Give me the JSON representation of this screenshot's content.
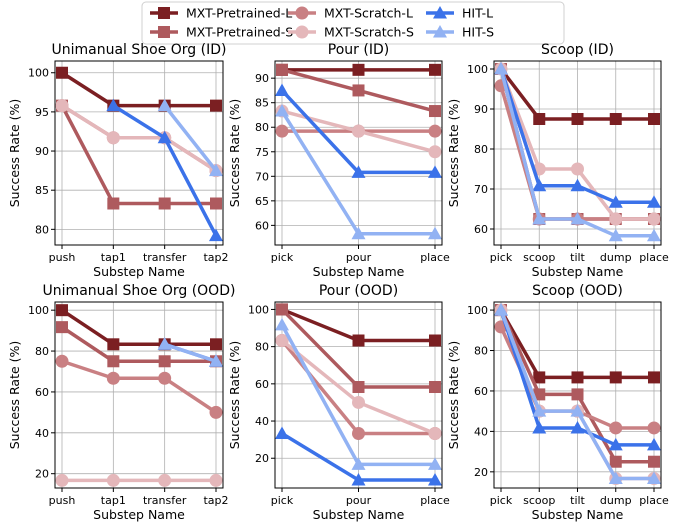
{
  "colors": {
    "MXT-Pretrained-L": "#7b1f22",
    "MXT-Pretrained-S": "#ae5a5e",
    "MXT-Scratch-L": "#c98083",
    "MXT-Scratch-S": "#e4b7ba",
    "HIT-L": "#3b72e9",
    "HIT-S": "#92b2f3"
  },
  "legend": {
    "entries": [
      {
        "name": "MXT-Pretrained-L",
        "marker": "square"
      },
      {
        "name": "MXT-Pretrained-S",
        "marker": "square"
      },
      {
        "name": "MXT-Scratch-L",
        "marker": "circle"
      },
      {
        "name": "MXT-Scratch-S",
        "marker": "circle"
      },
      {
        "name": "HIT-L",
        "marker": "triangle"
      },
      {
        "name": "HIT-S",
        "marker": "triangle"
      }
    ]
  },
  "chart_data": [
    {
      "type": "line",
      "title": "Unimanual Shoe Org (ID)",
      "xlabel": "Substep Name",
      "ylabel": "Success Rate (%)",
      "categories": [
        "push",
        "tap1",
        "transfer",
        "tap2"
      ],
      "ylim": [
        78,
        101.5
      ],
      "yticks": [
        80,
        85,
        90,
        95,
        100
      ],
      "grid": true,
      "series": [
        {
          "name": "MXT-Pretrained-L",
          "values": [
            100,
            95.8,
            95.8,
            95.8
          ]
        },
        {
          "name": "MXT-Pretrained-S",
          "values": [
            95.8,
            83.3,
            83.3,
            83.3
          ]
        },
        {
          "name": "MXT-Scratch-L",
          "values": [
            95.8,
            91.7,
            91.7,
            87.5
          ]
        },
        {
          "name": "MXT-Scratch-S",
          "values": [
            95.8,
            91.7,
            91.7,
            87.5
          ]
        },
        {
          "name": "HIT-L",
          "values": [
            null,
            95.8,
            91.7,
            79.2
          ]
        },
        {
          "name": "HIT-S",
          "values": [
            null,
            null,
            95.8,
            87.5
          ]
        }
      ]
    },
    {
      "type": "line",
      "title": "Pour (ID)",
      "xlabel": "Substep Name",
      "ylabel": "Success Rate (%)",
      "categories": [
        "pick",
        "pour",
        "place"
      ],
      "ylim": [
        56,
        93.5
      ],
      "yticks": [
        60,
        65,
        70,
        75,
        80,
        85,
        90
      ],
      "grid": true,
      "series": [
        {
          "name": "MXT-Pretrained-L",
          "values": [
            91.7,
            91.7,
            91.7
          ]
        },
        {
          "name": "MXT-Pretrained-S",
          "values": [
            91.7,
            87.5,
            83.3
          ]
        },
        {
          "name": "MXT-Scratch-L",
          "values": [
            79.2,
            79.2,
            79.2
          ]
        },
        {
          "name": "MXT-Scratch-S",
          "values": [
            83.3,
            79.2,
            75
          ]
        },
        {
          "name": "HIT-L",
          "values": [
            87.5,
            70.8,
            70.8
          ]
        },
        {
          "name": "HIT-S",
          "values": [
            83.3,
            58.3,
            58.3
          ]
        }
      ]
    },
    {
      "type": "line",
      "title": "Scoop (ID)",
      "xlabel": "Substep Name",
      "ylabel": "Success Rate (%)",
      "categories": [
        "pick",
        "scoop",
        "tilt",
        "dump",
        "place"
      ],
      "ylim": [
        56,
        102
      ],
      "yticks": [
        60,
        70,
        80,
        90,
        100
      ],
      "grid": true,
      "series": [
        {
          "name": "MXT-Pretrained-L",
          "values": [
            100,
            87.5,
            87.5,
            87.5,
            87.5
          ]
        },
        {
          "name": "MXT-Pretrained-S",
          "values": [
            100,
            62.5,
            62.5,
            62.5,
            62.5
          ]
        },
        {
          "name": "MXT-Scratch-L",
          "values": [
            95.8,
            62.5,
            62.5,
            62.5,
            62.5
          ]
        },
        {
          "name": "MXT-Scratch-S",
          "values": [
            100,
            75,
            75,
            62.5,
            62.5
          ]
        },
        {
          "name": "HIT-L",
          "values": [
            100,
            70.8,
            70.8,
            66.7,
            66.7
          ]
        },
        {
          "name": "HIT-S",
          "values": [
            100,
            62.5,
            62.5,
            58.3,
            58.3
          ]
        }
      ]
    },
    {
      "type": "line",
      "title": "Unimanual Shoe Org (OOD)",
      "xlabel": "Substep Name",
      "ylabel": "Success Rate (%)",
      "categories": [
        "push",
        "tap1",
        "transfer",
        "tap2"
      ],
      "ylim": [
        13,
        104
      ],
      "yticks": [
        20,
        40,
        60,
        80,
        100
      ],
      "grid": true,
      "series": [
        {
          "name": "MXT-Pretrained-L",
          "values": [
            100,
            83.3,
            83.3,
            83.3
          ]
        },
        {
          "name": "MXT-Pretrained-S",
          "values": [
            91.7,
            75,
            75,
            75
          ]
        },
        {
          "name": "MXT-Scratch-L",
          "values": [
            75,
            66.7,
            66.7,
            50
          ]
        },
        {
          "name": "MXT-Scratch-S",
          "values": [
            16.7,
            16.7,
            16.7,
            16.7
          ]
        },
        {
          "name": "HIT-L",
          "values": [
            null,
            null,
            83.3,
            75
          ]
        },
        {
          "name": "HIT-S",
          "values": [
            null,
            null,
            83.3,
            75
          ]
        }
      ]
    },
    {
      "type": "line",
      "title": "Pour (OOD)",
      "xlabel": "Substep Name",
      "ylabel": "Success Rate (%)",
      "categories": [
        "pick",
        "pour",
        "place"
      ],
      "ylim": [
        4,
        104
      ],
      "yticks": [
        20,
        40,
        60,
        80,
        100
      ],
      "grid": true,
      "series": [
        {
          "name": "MXT-Pretrained-L",
          "values": [
            100,
            83.3,
            83.3
          ]
        },
        {
          "name": "MXT-Pretrained-S",
          "values": [
            100,
            58.3,
            58.3
          ]
        },
        {
          "name": "MXT-Scratch-L",
          "values": [
            83.3,
            33.3,
            33.3
          ]
        },
        {
          "name": "MXT-Scratch-S",
          "values": [
            83.3,
            50,
            33.3
          ]
        },
        {
          "name": "HIT-L",
          "values": [
            33.3,
            8.3,
            8.3
          ]
        },
        {
          "name": "HIT-S",
          "values": [
            91.7,
            16.7,
            16.7
          ]
        }
      ]
    },
    {
      "type": "line",
      "title": "Scoop (OOD)",
      "xlabel": "Substep Name",
      "ylabel": "Success Rate (%)",
      "categories": [
        "pick",
        "scoop",
        "tilt",
        "dump",
        "place"
      ],
      "ylim": [
        12,
        104
      ],
      "yticks": [
        20,
        40,
        60,
        80,
        100
      ],
      "grid": true,
      "series": [
        {
          "name": "MXT-Pretrained-L",
          "values": [
            100,
            66.7,
            66.7,
            66.7,
            66.7
          ]
        },
        {
          "name": "MXT-Pretrained-S",
          "values": [
            100,
            58.3,
            58.3,
            25,
            25
          ]
        },
        {
          "name": "MXT-Scratch-L",
          "values": [
            91.7,
            50,
            50,
            41.7,
            41.7
          ]
        },
        {
          "name": "MXT-Scratch-S",
          "values": [
            100,
            50,
            50,
            16.7,
            16.7
          ]
        },
        {
          "name": "HIT-L",
          "values": [
            100,
            41.7,
            41.7,
            33.3,
            33.3
          ]
        },
        {
          "name": "HIT-S",
          "values": [
            100,
            50,
            50,
            16.7,
            16.7
          ]
        }
      ]
    }
  ]
}
